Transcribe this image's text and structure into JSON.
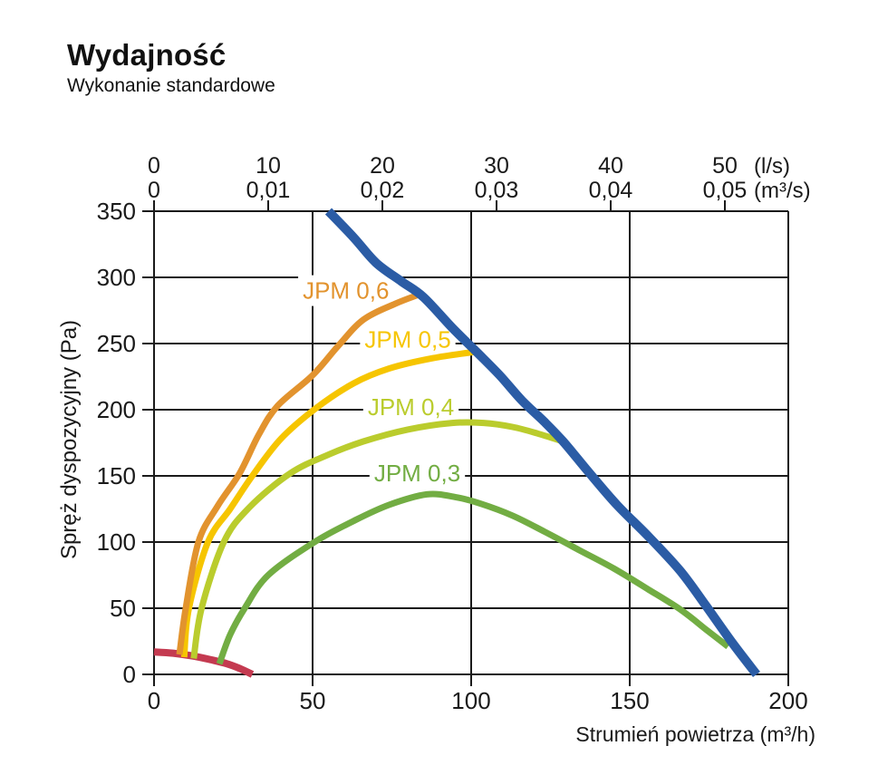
{
  "chart_data": {
    "type": "line",
    "title": "Wydajność",
    "subtitle": "Wykonanie standardowe",
    "grid": true,
    "legend_position": "inline-labels",
    "colors": {
      "axis": "#1a1a1a",
      "background": "#ffffff",
      "jpm06": "#e2932e",
      "jpm05": "#f6c500",
      "jpm04": "#bacc2d",
      "jpm03": "#72ad43",
      "limit": "#2b5ca5",
      "min": "#c43a50"
    },
    "x_axis": {
      "title": "Strumień powietrza (m³/h)",
      "range": [
        0,
        200
      ],
      "ticks": [
        {
          "v": 0,
          "label": "0"
        },
        {
          "v": 50,
          "label": "50"
        },
        {
          "v": 100,
          "label": "100"
        },
        {
          "v": 150,
          "label": "150"
        },
        {
          "v": 200,
          "label": "200"
        }
      ]
    },
    "y_axis": {
      "title": "Spręż dyspozycyjny (Pa)",
      "range": [
        0,
        350
      ],
      "ticks": [
        {
          "v": 0,
          "label": "0"
        },
        {
          "v": 50,
          "label": "50"
        },
        {
          "v": 100,
          "label": "100"
        },
        {
          "v": 150,
          "label": "150"
        },
        {
          "v": 200,
          "label": "200"
        },
        {
          "v": 250,
          "label": "250"
        },
        {
          "v": 300,
          "label": "300"
        },
        {
          "v": 350,
          "label": "350"
        }
      ]
    },
    "top_axis_ls": {
      "unit": "(l/s)",
      "ticks": [
        {
          "v": 0,
          "label": "0"
        },
        {
          "v": 36,
          "label": "10"
        },
        {
          "v": 72,
          "label": "20"
        },
        {
          "v": 108,
          "label": "30"
        },
        {
          "v": 144,
          "label": "40"
        },
        {
          "v": 180,
          "label": "50"
        }
      ]
    },
    "top_axis_m3s": {
      "unit": "(m³/s)",
      "ticks": [
        {
          "v": 0,
          "label": "0"
        },
        {
          "v": 36,
          "label": "0,01"
        },
        {
          "v": 72,
          "label": "0,02"
        },
        {
          "v": 108,
          "label": "0,03"
        },
        {
          "v": 144,
          "label": "0,04"
        },
        {
          "v": 180,
          "label": "0,05"
        }
      ]
    },
    "series": [
      {
        "id": "min-curve",
        "name": null,
        "color_key": "min",
        "stroke_width": 8,
        "label_pos": null,
        "points": [
          [
            0,
            17
          ],
          [
            6,
            16
          ],
          [
            12,
            14
          ],
          [
            18,
            11
          ],
          [
            23,
            8
          ],
          [
            27,
            4.5
          ],
          [
            31,
            0
          ]
        ]
      },
      {
        "id": "jpm-0-3",
        "name": "JPM 0,3",
        "color_key": "jpm03",
        "stroke_width": 7,
        "label_pos": [
          83,
          152
        ],
        "points": [
          [
            20.6,
            8
          ],
          [
            24,
            30
          ],
          [
            28.6,
            50
          ],
          [
            36,
            75
          ],
          [
            50.6,
            100
          ],
          [
            63,
            116
          ],
          [
            74,
            128
          ],
          [
            86,
            136
          ],
          [
            95,
            134
          ],
          [
            103,
            129
          ],
          [
            113,
            120
          ],
          [
            123,
            108
          ],
          [
            134,
            94
          ],
          [
            145,
            80
          ],
          [
            156,
            64
          ],
          [
            166,
            49
          ],
          [
            174,
            34
          ],
          [
            181,
            21
          ]
        ]
      },
      {
        "id": "jpm-0-4",
        "name": "JPM 0,4",
        "color_key": "jpm04",
        "stroke_width": 7,
        "label_pos": [
          81,
          202
        ],
        "points": [
          [
            12.5,
            12
          ],
          [
            15,
            50
          ],
          [
            22,
            100
          ],
          [
            30,
            126
          ],
          [
            43,
            152
          ],
          [
            55,
            166
          ],
          [
            66,
            176
          ],
          [
            80,
            185
          ],
          [
            94,
            190
          ],
          [
            104,
            190
          ],
          [
            113,
            187
          ],
          [
            121,
            182
          ],
          [
            129,
            176
          ]
        ]
      },
      {
        "id": "jpm-0-5",
        "name": "JPM 0,5",
        "color_key": "jpm05",
        "stroke_width": 7,
        "label_pos": [
          80,
          253
        ],
        "points": [
          [
            9.5,
            13
          ],
          [
            11,
            50
          ],
          [
            17,
            100
          ],
          [
            24,
            125
          ],
          [
            31,
            150
          ],
          [
            40,
            178
          ],
          [
            51,
            201
          ],
          [
            63,
            220
          ],
          [
            74,
            231
          ],
          [
            88,
            239
          ],
          [
            102,
            244
          ]
        ]
      },
      {
        "id": "jpm-0-6",
        "name": "JPM 0,6",
        "color_key": "jpm06",
        "stroke_width": 7,
        "label_pos": [
          60.5,
          290
        ],
        "points": [
          [
            8,
            15
          ],
          [
            10,
            50
          ],
          [
            14,
            100
          ],
          [
            20,
            127
          ],
          [
            27,
            152
          ],
          [
            33,
            181
          ],
          [
            39,
            203
          ],
          [
            50,
            226
          ],
          [
            58,
            248
          ],
          [
            66,
            268
          ],
          [
            76,
            280
          ],
          [
            83.5,
            287
          ]
        ]
      },
      {
        "id": "limit-line",
        "name": null,
        "color_key": "limit",
        "stroke_width": 10,
        "label_pos": null,
        "points": [
          [
            55,
            350
          ],
          [
            63,
            330
          ],
          [
            70,
            311
          ],
          [
            78,
            297
          ],
          [
            85,
            285
          ],
          [
            94,
            262
          ],
          [
            102,
            243
          ],
          [
            109,
            226
          ],
          [
            116,
            207
          ],
          [
            123,
            191
          ],
          [
            129,
            176
          ],
          [
            137,
            153
          ],
          [
            146,
            128
          ],
          [
            156,
            104
          ],
          [
            166,
            78
          ],
          [
            174,
            52
          ],
          [
            182,
            25
          ],
          [
            190,
            0
          ]
        ]
      }
    ]
  }
}
